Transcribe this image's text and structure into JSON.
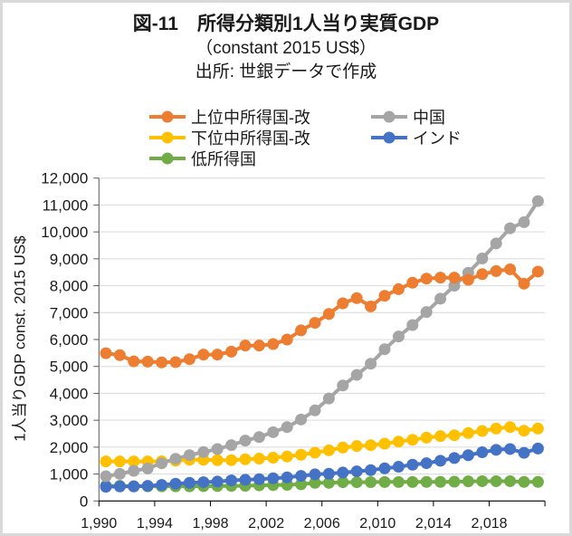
{
  "chart_data": {
    "type": "line",
    "title": "図-11　所得分類別1人当り実質GDP",
    "subtitle": "（constant 2015 US$）",
    "source": "出所: 世銀データで作成",
    "xlabel": "",
    "ylabel": "1人当りGDP  const. 2015 US$",
    "ylim": [
      0,
      12000
    ],
    "y_ticks": [
      0,
      1000,
      2000,
      3000,
      4000,
      5000,
      6000,
      7000,
      8000,
      9000,
      10000,
      11000,
      12000
    ],
    "y_tick_labels": [
      "0",
      "1,000",
      "2,000",
      "3,000",
      "4,000",
      "5,000",
      "6,000",
      "7,000",
      "8,000",
      "9,000",
      "10,000",
      "11,000",
      "12,000"
    ],
    "x": [
      1990,
      1991,
      1992,
      1993,
      1994,
      1995,
      1996,
      1997,
      1998,
      1999,
      2000,
      2001,
      2002,
      2003,
      2004,
      2005,
      2006,
      2007,
      2008,
      2009,
      2010,
      2011,
      2012,
      2013,
      2014,
      2015,
      2016,
      2017,
      2018,
      2019,
      2020,
      2021
    ],
    "x_tick_labels": [
      "1,990",
      "1,994",
      "1,998",
      "2,002",
      "2,006",
      "2,010",
      "2,014",
      "2,018"
    ],
    "grid": "horizontal",
    "legend_position": "top",
    "series": [
      {
        "name": "上位中所得国-改",
        "color": "#ed7d31",
        "values": [
          5490,
          5420,
          5190,
          5180,
          5150,
          5160,
          5270,
          5440,
          5440,
          5550,
          5775,
          5775,
          5830,
          6000,
          6340,
          6620,
          6950,
          7345,
          7540,
          7230,
          7625,
          7870,
          8110,
          8265,
          8300,
          8300,
          8220,
          8430,
          8545,
          8610,
          8075,
          8525
        ]
      },
      {
        "name": "中国",
        "color": "#a5a5a5",
        "values": [
          918,
          1008,
          1120,
          1210,
          1400,
          1568,
          1702,
          1817,
          1928,
          2075,
          2243,
          2375,
          2557,
          2746,
          3028,
          3365,
          3809,
          4292,
          4685,
          5101,
          5640,
          6112,
          6539,
          7022,
          7517,
          8000,
          8483,
          9011,
          9573,
          10135,
          10360,
          11146
        ]
      },
      {
        "name": "下位中所得国-改",
        "color": "#ffc000",
        "values": [
          1470,
          1470,
          1470,
          1470,
          1475,
          1500,
          1530,
          1530,
          1515,
          1515,
          1550,
          1573,
          1607,
          1652,
          1719,
          1795,
          1884,
          1985,
          2040,
          2073,
          2130,
          2207,
          2275,
          2355,
          2410,
          2443,
          2524,
          2601,
          2692,
          2746,
          2611,
          2692
        ]
      },
      {
        "name": "インド",
        "color": "#4472c4",
        "values": [
          528,
          540,
          540,
          562,
          596,
          640,
          674,
          697,
          719,
          764,
          787,
          809,
          843,
          876,
          933,
          989,
          1011,
          1056,
          1101,
          1146,
          1213,
          1270,
          1348,
          1404,
          1494,
          1596,
          1700,
          1810,
          1900,
          1930,
          1790,
          1950
        ]
      },
      {
        "name": "低所得国",
        "color": "#70ad47",
        "values": [
          560,
          560,
          550,
          545,
          545,
          545,
          545,
          550,
          555,
          560,
          565,
          580,
          590,
          600,
          620,
          674,
          674,
          697,
          697,
          700,
          705,
          705,
          705,
          708,
          708,
          715,
          730,
          735,
          735,
          735,
          708,
          708
        ]
      }
    ]
  }
}
